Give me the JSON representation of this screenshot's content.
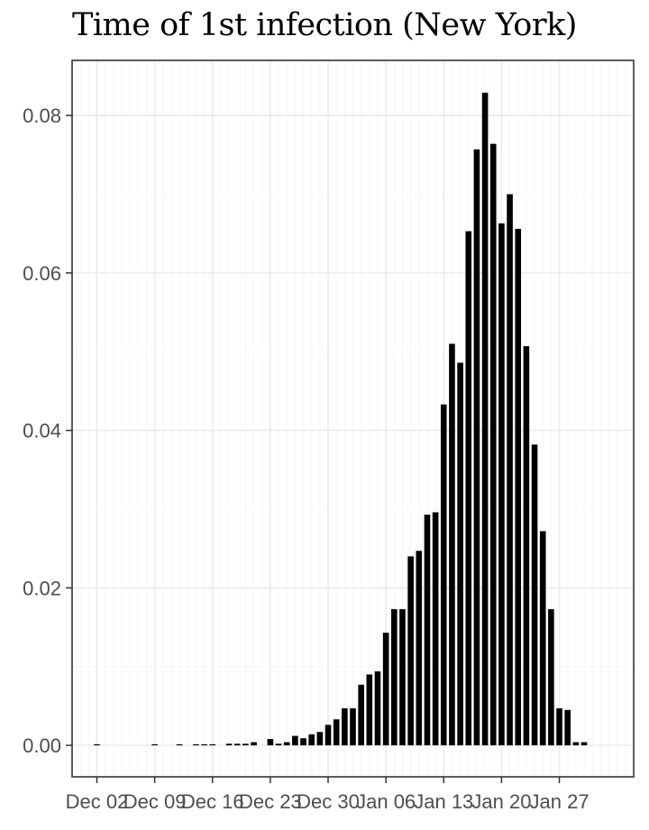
{
  "chart_data": {
    "type": "bar",
    "title": "Time of 1st infection (New York)",
    "xlabel": "",
    "ylabel": "",
    "x_axis": {
      "type": "date",
      "ticks": [
        {
          "date": "2019-12-02",
          "label": "Dec 02"
        },
        {
          "date": "2019-12-09",
          "label": "Dec 09"
        },
        {
          "date": "2019-12-16",
          "label": "Dec 16"
        },
        {
          "date": "2019-12-23",
          "label": "Dec 23"
        },
        {
          "date": "2019-12-30",
          "label": "Dec 30"
        },
        {
          "date": "2020-01-06",
          "label": "Jan 06"
        },
        {
          "date": "2020-01-13",
          "label": "Jan 13"
        },
        {
          "date": "2020-01-20",
          "label": "Jan 20"
        },
        {
          "date": "2020-01-27",
          "label": "Jan 27"
        }
      ],
      "range": [
        "2019-11-29",
        "2020-02-05"
      ]
    },
    "y_axis": {
      "ticks": [
        0,
        0.02,
        0.04,
        0.06,
        0.08
      ],
      "tick_labels": [
        "0.00",
        "0.02",
        "0.04",
        "0.06",
        "0.08"
      ],
      "range": [
        -0.004,
        0.087
      ]
    },
    "grid": true,
    "bar_color": "#000000",
    "points": [
      [
        "2019-12-02",
        0.0001
      ],
      [
        "2019-12-09",
        0.0001
      ],
      [
        "2019-12-12",
        0.0001
      ],
      [
        "2019-12-14",
        0.0001
      ],
      [
        "2019-12-15",
        0.0001
      ],
      [
        "2019-12-16",
        0.0001
      ],
      [
        "2019-12-18",
        0.0002
      ],
      [
        "2019-12-19",
        0.0002
      ],
      [
        "2019-12-20",
        0.0002
      ],
      [
        "2019-12-21",
        0.0004
      ],
      [
        "2019-12-23",
        0.0008
      ],
      [
        "2019-12-24",
        0.0002
      ],
      [
        "2019-12-25",
        0.0004
      ],
      [
        "2019-12-26",
        0.0012
      ],
      [
        "2019-12-27",
        0.0009
      ],
      [
        "2019-12-28",
        0.0014
      ],
      [
        "2019-12-29",
        0.0017
      ],
      [
        "2019-12-30",
        0.0026
      ],
      [
        "2019-12-31",
        0.0033
      ],
      [
        "2020-01-01",
        0.0047
      ],
      [
        "2020-01-02",
        0.0047
      ],
      [
        "2020-01-03",
        0.0077
      ],
      [
        "2020-01-04",
        0.009
      ],
      [
        "2020-01-05",
        0.0094
      ],
      [
        "2020-01-06",
        0.0143
      ],
      [
        "2020-01-07",
        0.0173
      ],
      [
        "2020-01-08",
        0.0173
      ],
      [
        "2020-01-09",
        0.024
      ],
      [
        "2020-01-10",
        0.0247
      ],
      [
        "2020-01-11",
        0.0293
      ],
      [
        "2020-01-12",
        0.0296
      ],
      [
        "2020-01-13",
        0.0433
      ],
      [
        "2020-01-14",
        0.051
      ],
      [
        "2020-01-15",
        0.0486
      ],
      [
        "2020-01-16",
        0.0653
      ],
      [
        "2020-01-17",
        0.0757
      ],
      [
        "2020-01-18",
        0.0829
      ],
      [
        "2020-01-19",
        0.0764
      ],
      [
        "2020-01-20",
        0.0663
      ],
      [
        "2020-01-21",
        0.07
      ],
      [
        "2020-01-22",
        0.0656
      ],
      [
        "2020-01-23",
        0.0507
      ],
      [
        "2020-01-24",
        0.0382
      ],
      [
        "2020-01-25",
        0.0272
      ],
      [
        "2020-01-26",
        0.0173
      ],
      [
        "2020-01-27",
        0.0047
      ],
      [
        "2020-01-28",
        0.0045
      ],
      [
        "2020-01-29",
        0.0004
      ],
      [
        "2020-01-30",
        0.0004
      ]
    ]
  }
}
